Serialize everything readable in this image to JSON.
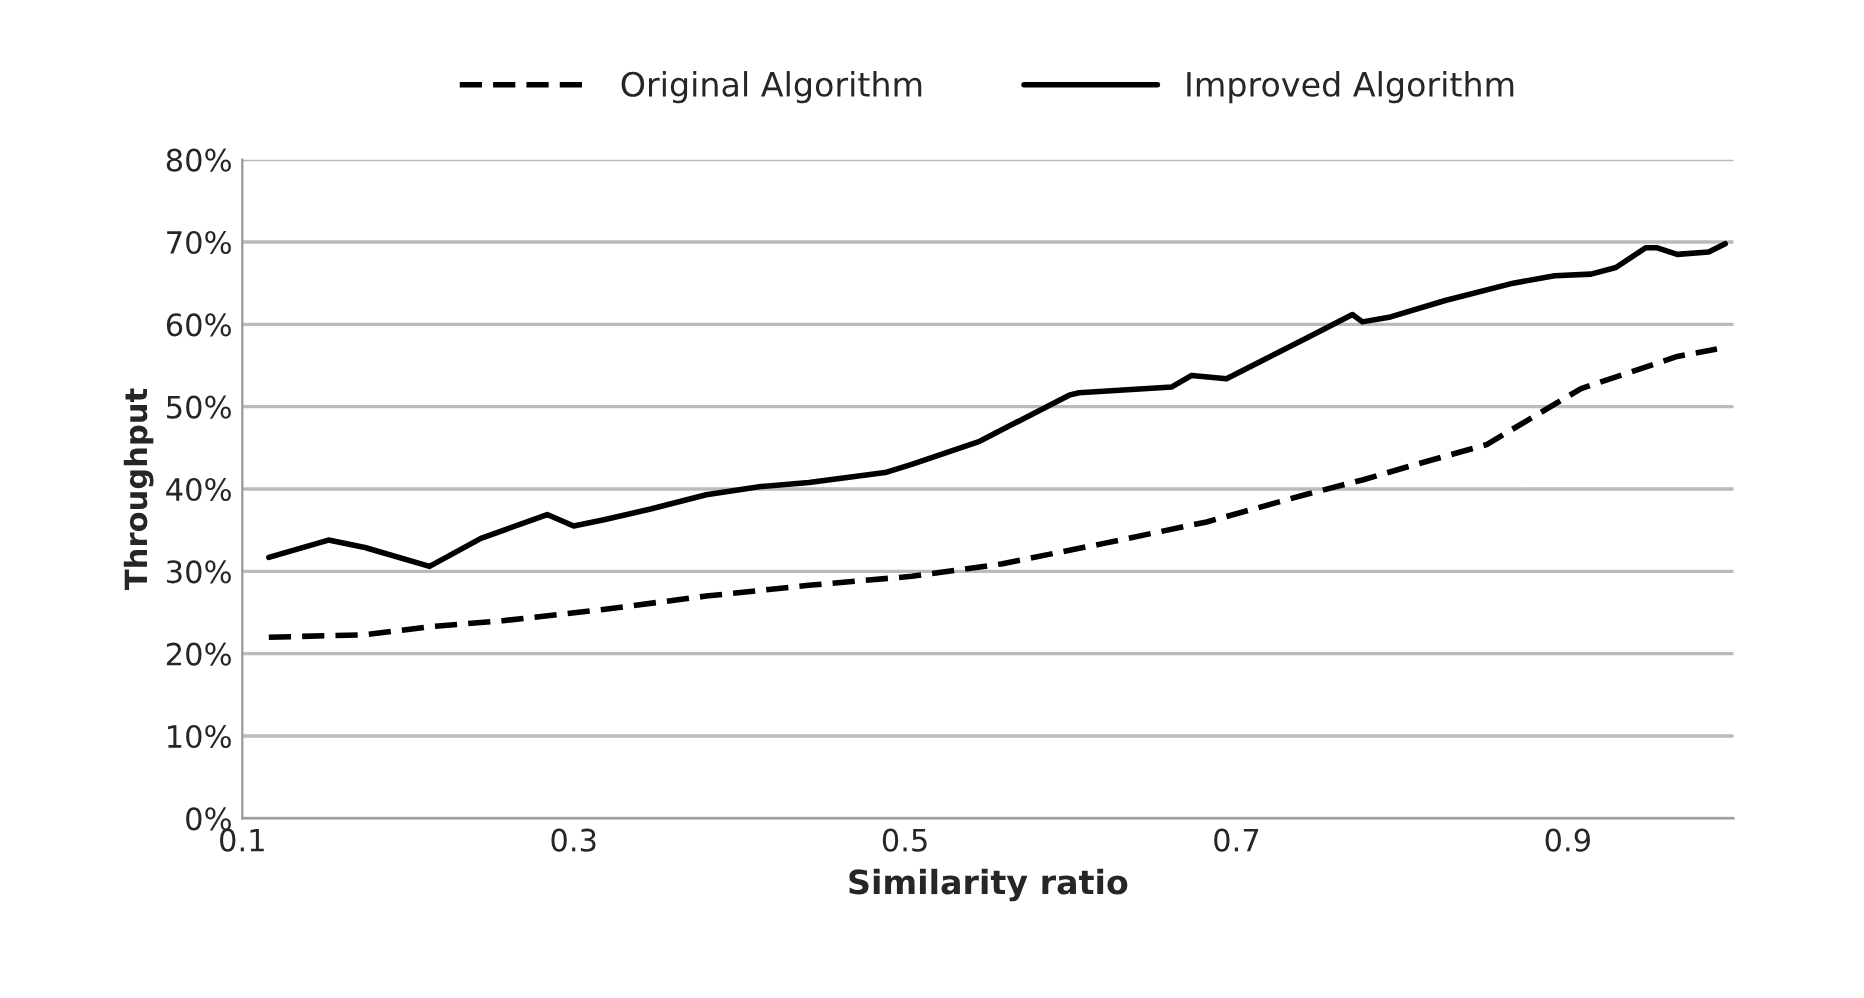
{
  "chart_data": {
    "type": "line",
    "xlabel": "Similarity ratio",
    "ylabel": "Throughput",
    "xlim": [
      0.1,
      1.0
    ],
    "xticks": [
      0.1,
      0.3,
      0.5,
      0.7,
      0.9
    ],
    "ylim": [
      0,
      80
    ],
    "yticks": [
      {
        "value": 0,
        "label": "0%"
      },
      {
        "value": 10,
        "label": "10%"
      },
      {
        "value": 20,
        "label": "20%"
      },
      {
        "value": 30,
        "label": "30%"
      },
      {
        "value": 40,
        "label": "40%"
      },
      {
        "value": 50,
        "label": "50%"
      },
      {
        "value": 60,
        "label": "60%"
      },
      {
        "value": 70,
        "label": "70%"
      },
      {
        "value": 80,
        "label": "80%"
      }
    ],
    "grid": "y",
    "legend": "top",
    "series": [
      {
        "name": "Original Algorithm",
        "color": "#000000",
        "line_style": "dashed",
        "x": [
          0.116,
          0.174,
          0.215,
          0.257,
          0.319,
          0.38,
          0.442,
          0.504,
          0.558,
          0.62,
          0.682,
          0.743,
          0.776,
          0.805,
          0.851,
          0.908,
          0.966,
          0.99
        ],
        "values": [
          22.0,
          22.3,
          23.3,
          24.0,
          25.4,
          27.0,
          28.3,
          29.4,
          30.9,
          33.4,
          36.0,
          39.4,
          41.1,
          42.8,
          45.4,
          52.2,
          56.1,
          57.0
        ]
      },
      {
        "name": "Improved Algorithm",
        "color": "#000000",
        "line_style": "solid",
        "x": [
          0.116,
          0.152,
          0.174,
          0.213,
          0.244,
          0.284,
          0.3,
          0.319,
          0.347,
          0.38,
          0.413,
          0.442,
          0.488,
          0.504,
          0.545,
          0.599,
          0.605,
          0.661,
          0.673,
          0.694,
          0.743,
          0.77,
          0.776,
          0.793,
          0.826,
          0.867,
          0.892,
          0.914,
          0.929,
          0.947,
          0.954,
          0.966,
          0.985,
          0.995
        ],
        "values": [
          31.7,
          33.8,
          32.9,
          30.6,
          34.0,
          36.9,
          35.5,
          36.3,
          37.6,
          39.3,
          40.3,
          40.8,
          42.0,
          43.0,
          45.8,
          51.4,
          51.7,
          52.4,
          53.8,
          53.4,
          58.4,
          61.2,
          60.3,
          60.9,
          62.9,
          65.0,
          65.9,
          66.1,
          66.9,
          69.3,
          69.3,
          68.5,
          68.8,
          69.8
        ]
      }
    ]
  }
}
